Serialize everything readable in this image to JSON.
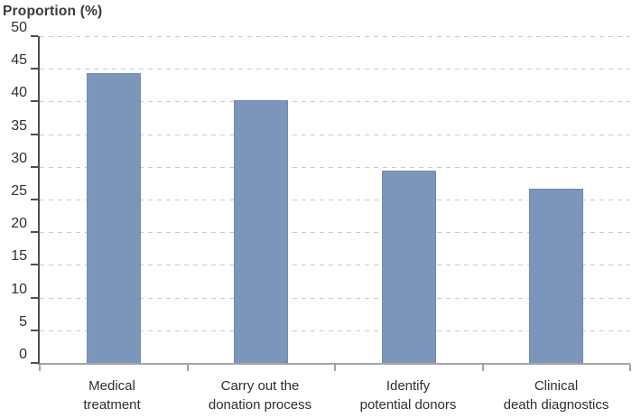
{
  "chart_data": {
    "type": "bar",
    "title": "Proportion (%)",
    "ylabel": "Proportion (%)",
    "xlabel": "",
    "categories": [
      "Medical treatment",
      "Carry out the donation process",
      "Identify potential donors",
      "Clinical death diagnostics"
    ],
    "category_lines": [
      [
        "Medical",
        "treatment"
      ],
      [
        "Carry out the",
        "donation process"
      ],
      [
        "Identify",
        "potential donors"
      ],
      [
        "Clinical",
        "death diagnostics"
      ]
    ],
    "values": [
      44.3,
      40.2,
      29.4,
      26.7
    ],
    "ylim": [
      0,
      50
    ],
    "ytick_step": 5,
    "ytick_labels": [
      "0",
      "5",
      "10",
      "15",
      "20",
      "25",
      "30",
      "35",
      "40",
      "45",
      "50"
    ],
    "grid": "horizontal-dashed",
    "legend": "none",
    "colors": {
      "bar_fill": "#7c95bb",
      "bar_border": "#708bb2",
      "gridline": "#c9c9c9",
      "y_axis_line": "#4f4f4f",
      "x_axis_line": "#a3a3a3",
      "text": "#2e2e2e",
      "background": "#ffffff"
    }
  }
}
